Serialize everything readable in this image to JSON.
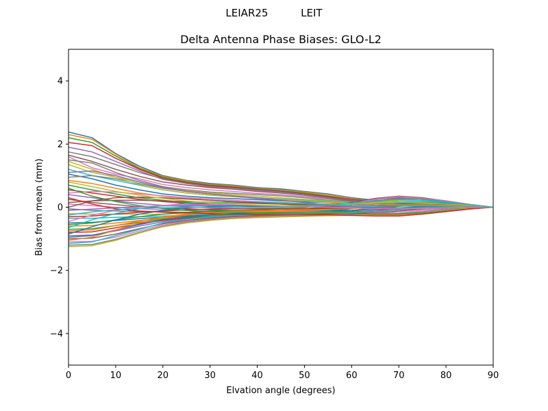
{
  "figure": {
    "suptitle": "LEIAR25          LEIT"
  },
  "chart_data": {
    "type": "line",
    "title": "Delta Antenna Phase Biases: GLO-L2",
    "xlabel": "Elvation angle (degrees)",
    "ylabel": "Bias from mean (mm)",
    "xlim": [
      0,
      90
    ],
    "ylim": [
      -5,
      5
    ],
    "xticks": [
      0,
      10,
      20,
      30,
      40,
      50,
      60,
      70,
      80,
      90
    ],
    "xtick_labels": [
      "0",
      "10",
      "20",
      "30",
      "40",
      "50",
      "60",
      "70",
      "80",
      "90"
    ],
    "yticks": [
      -4,
      -2,
      0,
      2,
      4
    ],
    "ytick_labels": [
      "−4",
      "−2",
      "0",
      "2",
      "4"
    ],
    "grid": false,
    "legend": "none",
    "colors": [
      "#1f77b4",
      "#ff7f0e",
      "#2ca02c",
      "#d62728",
      "#9467bd",
      "#8c564b",
      "#e377c2",
      "#7f7f7f",
      "#bcbd22",
      "#17becf"
    ],
    "x": [
      0,
      5,
      10,
      15,
      20,
      25,
      30,
      35,
      40,
      45,
      50,
      55,
      60,
      65,
      70,
      75,
      80,
      85,
      90
    ],
    "series": [
      {
        "values": [
          2.38,
          2.2,
          1.7,
          1.3,
          1.0,
          0.85,
          0.75,
          0.7,
          0.62,
          0.58,
          0.5,
          0.42,
          0.3,
          0.22,
          0.18,
          0.15,
          0.12,
          0.06,
          0
        ]
      },
      {
        "values": [
          2.3,
          2.15,
          1.68,
          1.25,
          0.98,
          0.83,
          0.72,
          0.68,
          0.6,
          0.55,
          0.48,
          0.4,
          0.28,
          0.2,
          0.17,
          0.14,
          0.1,
          0.05,
          0
        ]
      },
      {
        "values": [
          2.2,
          2.05,
          1.62,
          1.22,
          0.95,
          0.8,
          0.7,
          0.65,
          0.58,
          0.52,
          0.45,
          0.36,
          0.25,
          0.2,
          0.16,
          0.14,
          0.1,
          0.05,
          0
        ]
      },
      {
        "values": [
          2.05,
          1.95,
          1.55,
          1.2,
          0.92,
          0.78,
          0.68,
          0.63,
          0.56,
          0.5,
          0.42,
          0.33,
          0.24,
          0.18,
          0.15,
          0.13,
          0.1,
          0.05,
          0
        ]
      },
      {
        "values": [
          1.9,
          1.75,
          1.45,
          1.15,
          0.88,
          0.75,
          0.65,
          0.6,
          0.54,
          0.48,
          0.4,
          0.3,
          0.22,
          0.17,
          0.14,
          0.12,
          0.09,
          0.04,
          0
        ]
      },
      {
        "values": [
          1.65,
          1.45,
          1.2,
          0.98,
          0.8,
          0.7,
          0.62,
          0.57,
          0.5,
          0.45,
          0.38,
          0.28,
          0.2,
          0.16,
          0.14,
          0.12,
          0.09,
          0.04,
          0
        ]
      },
      {
        "values": [
          1.6,
          1.25,
          1.05,
          0.9,
          0.72,
          0.62,
          0.55,
          0.5,
          0.44,
          0.4,
          0.34,
          0.26,
          0.18,
          0.15,
          0.13,
          0.11,
          0.08,
          0.04,
          0
        ]
      },
      {
        "values": [
          1.5,
          1.4,
          1.1,
          0.85,
          0.65,
          0.55,
          0.48,
          0.44,
          0.4,
          0.36,
          0.3,
          0.22,
          0.16,
          0.14,
          0.12,
          0.1,
          0.08,
          0.04,
          0
        ]
      },
      {
        "values": [
          1.35,
          1.1,
          0.95,
          0.8,
          0.62,
          0.52,
          0.45,
          0.4,
          0.35,
          0.3,
          0.25,
          0.2,
          0.15,
          0.13,
          0.11,
          0.1,
          0.07,
          0.03,
          0
        ]
      },
      {
        "values": [
          1.2,
          1.0,
          0.85,
          0.7,
          0.55,
          0.45,
          0.38,
          0.34,
          0.3,
          0.26,
          0.22,
          0.18,
          0.14,
          0.12,
          0.1,
          0.09,
          0.07,
          0.03,
          0
        ]
      },
      {
        "values": [
          1.05,
          0.9,
          0.7,
          0.55,
          0.42,
          0.35,
          0.3,
          0.27,
          0.24,
          0.2,
          0.17,
          0.15,
          0.12,
          0.1,
          0.09,
          0.08,
          0.06,
          0.03,
          0
        ]
      },
      {
        "values": [
          0.85,
          0.75,
          0.6,
          0.45,
          0.35,
          0.28,
          0.22,
          0.18,
          0.15,
          0.12,
          0.1,
          0.1,
          0.12,
          0.16,
          0.18,
          0.16,
          0.12,
          0.06,
          0
        ]
      },
      {
        "values": [
          0.7,
          0.55,
          0.42,
          0.3,
          0.22,
          0.15,
          0.1,
          0.08,
          0.06,
          0.04,
          0.04,
          0.06,
          0.12,
          0.2,
          0.25,
          0.22,
          0.15,
          0.07,
          0
        ]
      },
      {
        "values": [
          0.55,
          0.45,
          0.35,
          0.25,
          0.18,
          0.12,
          0.08,
          0.05,
          0.02,
          0.0,
          0.0,
          0.05,
          0.15,
          0.25,
          0.3,
          0.26,
          0.18,
          0.08,
          0
        ]
      },
      {
        "values": [
          0.4,
          0.3,
          0.2,
          0.12,
          0.06,
          0.02,
          -0.02,
          -0.04,
          -0.05,
          -0.06,
          -0.05,
          0.02,
          0.12,
          0.24,
          0.32,
          0.28,
          0.2,
          0.09,
          0
        ]
      },
      {
        "values": [
          0.25,
          0.15,
          0.08,
          0.02,
          -0.02,
          -0.05,
          -0.08,
          -0.1,
          -0.1,
          -0.1,
          -0.08,
          0.0,
          0.15,
          0.28,
          0.35,
          0.3,
          0.2,
          0.09,
          0
        ]
      },
      {
        "values": [
          0.1,
          0.05,
          0.0,
          -0.05,
          -0.08,
          -0.1,
          -0.12,
          -0.12,
          -0.12,
          -0.12,
          -0.1,
          -0.02,
          0.12,
          0.25,
          0.33,
          0.28,
          0.2,
          0.09,
          0
        ]
      },
      {
        "values": [
          -0.05,
          -0.1,
          -0.12,
          -0.14,
          -0.15,
          -0.16,
          -0.16,
          -0.16,
          -0.15,
          -0.15,
          -0.12,
          -0.05,
          0.08,
          0.2,
          0.28,
          0.26,
          0.18,
          0.08,
          0
        ]
      },
      {
        "values": [
          -0.2,
          -0.22,
          -0.22,
          -0.22,
          -0.22,
          -0.2,
          -0.2,
          -0.18,
          -0.18,
          -0.16,
          -0.14,
          -0.08,
          0.05,
          0.15,
          0.22,
          0.22,
          0.16,
          0.07,
          0
        ]
      },
      {
        "values": [
          -0.35,
          -0.35,
          -0.32,
          -0.3,
          -0.28,
          -0.25,
          -0.22,
          -0.2,
          -0.2,
          -0.18,
          -0.15,
          -0.1,
          0.0,
          0.1,
          0.18,
          0.18,
          0.14,
          0.06,
          0
        ]
      },
      {
        "values": [
          -0.5,
          -0.48,
          -0.42,
          -0.36,
          -0.32,
          -0.28,
          -0.25,
          -0.22,
          -0.2,
          -0.18,
          -0.16,
          -0.12,
          -0.05,
          0.05,
          0.12,
          0.14,
          0.12,
          0.05,
          0
        ]
      },
      {
        "values": [
          -0.6,
          -0.58,
          -0.5,
          -0.42,
          -0.35,
          -0.3,
          -0.26,
          -0.23,
          -0.2,
          -0.18,
          -0.16,
          -0.14,
          -0.1,
          0.0,
          0.08,
          0.1,
          0.1,
          0.05,
          0
        ]
      },
      {
        "values": [
          -0.7,
          -0.68,
          -0.58,
          -0.48,
          -0.38,
          -0.32,
          -0.28,
          -0.24,
          -0.22,
          -0.2,
          -0.18,
          -0.16,
          -0.12,
          -0.05,
          0.03,
          0.07,
          0.08,
          0.04,
          0
        ]
      },
      {
        "values": [
          -0.8,
          -0.78,
          -0.65,
          -0.52,
          -0.42,
          -0.35,
          -0.3,
          -0.26,
          -0.24,
          -0.22,
          -0.2,
          -0.18,
          -0.15,
          -0.1,
          -0.04,
          0.02,
          0.05,
          0.03,
          0
        ]
      },
      {
        "values": [
          -0.9,
          -0.88,
          -0.75,
          -0.6,
          -0.46,
          -0.38,
          -0.32,
          -0.28,
          -0.26,
          -0.24,
          -0.22,
          -0.2,
          -0.18,
          -0.14,
          -0.08,
          -0.02,
          0.02,
          0.02,
          0
        ]
      },
      {
        "values": [
          -1.0,
          -0.98,
          -0.85,
          -0.68,
          -0.52,
          -0.42,
          -0.35,
          -0.3,
          -0.28,
          -0.26,
          -0.24,
          -0.22,
          -0.2,
          -0.18,
          -0.12,
          -0.06,
          0.0,
          0.01,
          0
        ]
      },
      {
        "values": [
          -1.1,
          -1.08,
          -0.95,
          -0.75,
          -0.56,
          -0.45,
          -0.38,
          -0.33,
          -0.3,
          -0.28,
          -0.26,
          -0.24,
          -0.22,
          -0.2,
          -0.16,
          -0.1,
          -0.04,
          0.0,
          0
        ]
      },
      {
        "values": [
          -1.2,
          -1.18,
          -1.02,
          -0.8,
          -0.6,
          -0.48,
          -0.4,
          -0.35,
          -0.32,
          -0.3,
          -0.28,
          -0.26,
          -0.24,
          -0.22,
          -0.2,
          -0.14,
          -0.07,
          -0.02,
          0
        ]
      },
      {
        "values": [
          -1.25,
          -1.22,
          -1.05,
          -0.82,
          -0.62,
          -0.5,
          -0.42,
          -0.36,
          -0.33,
          -0.31,
          -0.29,
          -0.27,
          -0.26,
          -0.25,
          -0.24,
          -0.18,
          -0.1,
          -0.04,
          0
        ]
      },
      {
        "values": [
          -1.15,
          -1.1,
          -0.9,
          -0.7,
          -0.5,
          -0.38,
          -0.3,
          -0.26,
          -0.24,
          -0.22,
          -0.2,
          -0.18,
          -0.16,
          -0.12,
          -0.08,
          -0.04,
          0.0,
          0.01,
          0
        ]
      },
      {
        "values": [
          -0.95,
          -0.9,
          -0.72,
          -0.55,
          -0.4,
          -0.3,
          -0.24,
          -0.2,
          -0.18,
          -0.16,
          -0.14,
          -0.12,
          -0.1,
          -0.06,
          -0.02,
          0.02,
          0.03,
          0.02,
          0
        ]
      },
      {
        "values": [
          -0.75,
          -0.72,
          -0.58,
          -0.44,
          -0.32,
          -0.24,
          -0.18,
          -0.14,
          -0.12,
          -0.1,
          -0.08,
          -0.06,
          -0.04,
          0.0,
          0.04,
          0.06,
          0.06,
          0.03,
          0
        ]
      },
      {
        "values": [
          -0.55,
          -0.5,
          -0.4,
          -0.3,
          -0.22,
          -0.16,
          -0.12,
          -0.1,
          -0.08,
          -0.06,
          -0.05,
          -0.04,
          -0.02,
          0.02,
          0.06,
          0.08,
          0.07,
          0.03,
          0
        ]
      },
      {
        "values": [
          -0.3,
          -0.28,
          -0.22,
          -0.16,
          -0.12,
          -0.08,
          -0.06,
          -0.05,
          -0.04,
          -0.04,
          -0.04,
          -0.03,
          -0.02,
          0.0,
          0.04,
          0.06,
          0.06,
          0.03,
          0
        ]
      },
      {
        "values": [
          -0.1,
          -0.06,
          -0.02,
          0.02,
          0.04,
          0.05,
          0.05,
          0.05,
          0.04,
          0.03,
          0.02,
          0.02,
          0.02,
          0.03,
          0.05,
          0.06,
          0.05,
          0.02,
          0
        ]
      },
      {
        "values": [
          0.15,
          0.2,
          0.22,
          0.22,
          0.2,
          0.18,
          0.16,
          0.14,
          0.12,
          0.1,
          0.08,
          0.06,
          0.05,
          0.05,
          0.06,
          0.06,
          0.05,
          0.02,
          0
        ]
      },
      {
        "values": [
          0.45,
          0.5,
          0.48,
          0.42,
          0.36,
          0.3,
          0.26,
          0.22,
          0.18,
          0.15,
          0.12,
          0.08,
          0.05,
          0.04,
          0.04,
          0.04,
          0.04,
          0.02,
          0
        ]
      },
      {
        "values": [
          0.95,
          1.0,
          0.9,
          0.75,
          0.6,
          0.5,
          0.42,
          0.36,
          0.3,
          0.25,
          0.2,
          0.15,
          0.1,
          0.06,
          0.04,
          0.04,
          0.03,
          0.01,
          0
        ]
      },
      {
        "values": [
          1.45,
          1.2,
          0.95,
          0.72,
          0.55,
          0.45,
          0.38,
          0.33,
          0.28,
          0.24,
          0.2,
          0.16,
          0.12,
          0.1,
          0.08,
          0.07,
          0.05,
          0.02,
          0
        ]
      },
      {
        "values": [
          -0.65,
          -0.4,
          -0.2,
          -0.05,
          0.05,
          0.12,
          0.15,
          0.16,
          0.16,
          0.15,
          0.12,
          0.08,
          0.04,
          0.0,
          -0.02,
          -0.02,
          -0.01,
          0.0,
          0
        ]
      },
      {
        "values": [
          -0.85,
          -0.62,
          -0.4,
          -0.22,
          -0.1,
          -0.02,
          0.02,
          0.04,
          0.05,
          0.05,
          0.04,
          0.02,
          0.0,
          -0.02,
          -0.04,
          -0.04,
          -0.03,
          -0.01,
          0
        ]
      },
      {
        "values": [
          -1.05,
          -0.95,
          -0.72,
          -0.5,
          -0.32,
          -0.22,
          -0.16,
          -0.14,
          -0.14,
          -0.14,
          -0.14,
          -0.16,
          -0.2,
          -0.24,
          -0.26,
          -0.2,
          -0.12,
          -0.05,
          0
        ]
      },
      {
        "values": [
          0.6,
          0.35,
          0.18,
          0.05,
          -0.04,
          -0.1,
          -0.14,
          -0.16,
          -0.18,
          -0.18,
          -0.18,
          -0.18,
          -0.2,
          -0.22,
          -0.22,
          -0.18,
          -0.12,
          -0.05,
          0
        ]
      },
      {
        "values": [
          0.3,
          0.1,
          -0.05,
          -0.12,
          -0.16,
          -0.18,
          -0.2,
          -0.22,
          -0.24,
          -0.24,
          -0.24,
          -0.24,
          -0.26,
          -0.28,
          -0.28,
          -0.22,
          -0.14,
          -0.06,
          0
        ]
      },
      {
        "values": [
          1.1,
          1.15,
          1.0,
          0.8,
          0.62,
          0.5,
          0.42,
          0.35,
          0.28,
          0.22,
          0.15,
          0.08,
          0.0,
          -0.05,
          -0.06,
          -0.05,
          -0.03,
          -0.01,
          0
        ]
      },
      {
        "values": [
          0.0,
          0.2,
          0.3,
          0.32,
          0.3,
          0.26,
          0.22,
          0.18,
          0.14,
          0.1,
          0.06,
          0.02,
          -0.02,
          -0.05,
          -0.06,
          -0.05,
          -0.03,
          -0.01,
          0
        ]
      },
      {
        "values": [
          -0.45,
          -0.25,
          -0.1,
          0.0,
          0.06,
          0.08,
          0.08,
          0.08,
          0.06,
          0.04,
          0.02,
          0.0,
          -0.02,
          -0.04,
          -0.05,
          -0.04,
          -0.03,
          -0.01,
          0
        ]
      },
      {
        "values": [
          1.75,
          1.6,
          1.35,
          1.1,
          0.9,
          0.75,
          0.65,
          0.58,
          0.52,
          0.46,
          0.38,
          0.28,
          0.18,
          0.12,
          0.1,
          0.09,
          0.07,
          0.03,
          0
        ]
      },
      {
        "values": [
          0.8,
          0.65,
          0.5,
          0.38,
          0.28,
          0.2,
          0.14,
          0.1,
          0.07,
          0.05,
          0.04,
          0.06,
          0.1,
          0.14,
          0.16,
          0.14,
          0.1,
          0.05,
          0
        ]
      },
      {
        "values": [
          -0.25,
          -0.15,
          -0.08,
          -0.04,
          -0.02,
          0.0,
          0.0,
          0.0,
          0.0,
          0.0,
          0.02,
          0.06,
          0.12,
          0.2,
          0.24,
          0.22,
          0.16,
          0.07,
          0
        ]
      }
    ]
  }
}
